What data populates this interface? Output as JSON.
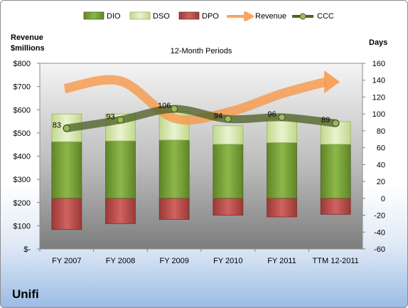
{
  "chart_data": {
    "type": "bar",
    "title": "12-Month Periods",
    "categories": [
      "FY 2007",
      "FY 2008",
      "FY 2009",
      "FY 2010",
      "FY 2011",
      "TTM 12-2011"
    ],
    "left_axis": {
      "label_line1": "Revenue",
      "label_line2": "$millions",
      "ylim": [
        0,
        800
      ],
      "ticks": [
        0,
        100,
        200,
        300,
        400,
        500,
        600,
        700,
        800
      ],
      "tick_labels": [
        "$-",
        "$100",
        "$200",
        "$300",
        "$400",
        "$500",
        "$600",
        "$700",
        "$800"
      ]
    },
    "right_axis": {
      "label": "Days",
      "ylim": [
        -60,
        160
      ],
      "ticks": [
        -60,
        -40,
        -20,
        0,
        20,
        40,
        60,
        80,
        100,
        120,
        140,
        160
      ],
      "tick_labels": [
        "-60",
        "-40",
        "-20",
        "0",
        "20",
        "40",
        "60",
        "80",
        "100",
        "120",
        "140",
        "160"
      ]
    },
    "legend": [
      {
        "name": "DIO",
        "color": "#77a033",
        "kind": "bar"
      },
      {
        "name": "DSO",
        "color": "#d8e8b0",
        "kind": "bar"
      },
      {
        "name": "DPO",
        "color": "#c0504d",
        "kind": "bar"
      },
      {
        "name": "Revenue",
        "color": "#f79646",
        "kind": "arrow"
      },
      {
        "name": "CCC",
        "color": "#4f6228",
        "kind": "line"
      }
    ],
    "series": [
      {
        "name": "DIO",
        "axis": "days",
        "values": [
          67,
          68,
          69,
          64,
          66,
          64
        ]
      },
      {
        "name": "DSO",
        "axis": "days",
        "values": [
          33,
          32,
          34,
          22,
          29,
          27
        ]
      },
      {
        "name": "DPO",
        "axis": "days",
        "values": [
          -37,
          -30,
          -25,
          -20,
          -22,
          -19
        ]
      },
      {
        "name": "CCC",
        "axis": "days",
        "values": [
          83,
          93,
          106,
          94,
          96,
          89
        ]
      }
    ],
    "ccc_labels": [
      "83",
      "93",
      "106",
      "94",
      "96",
      "89"
    ],
    "revenue_trend": {
      "axis": "days",
      "values": [
        130,
        139,
        95,
        102,
        124,
        138
      ]
    },
    "legend_position": "top",
    "grid": false
  },
  "company": "Unifi"
}
